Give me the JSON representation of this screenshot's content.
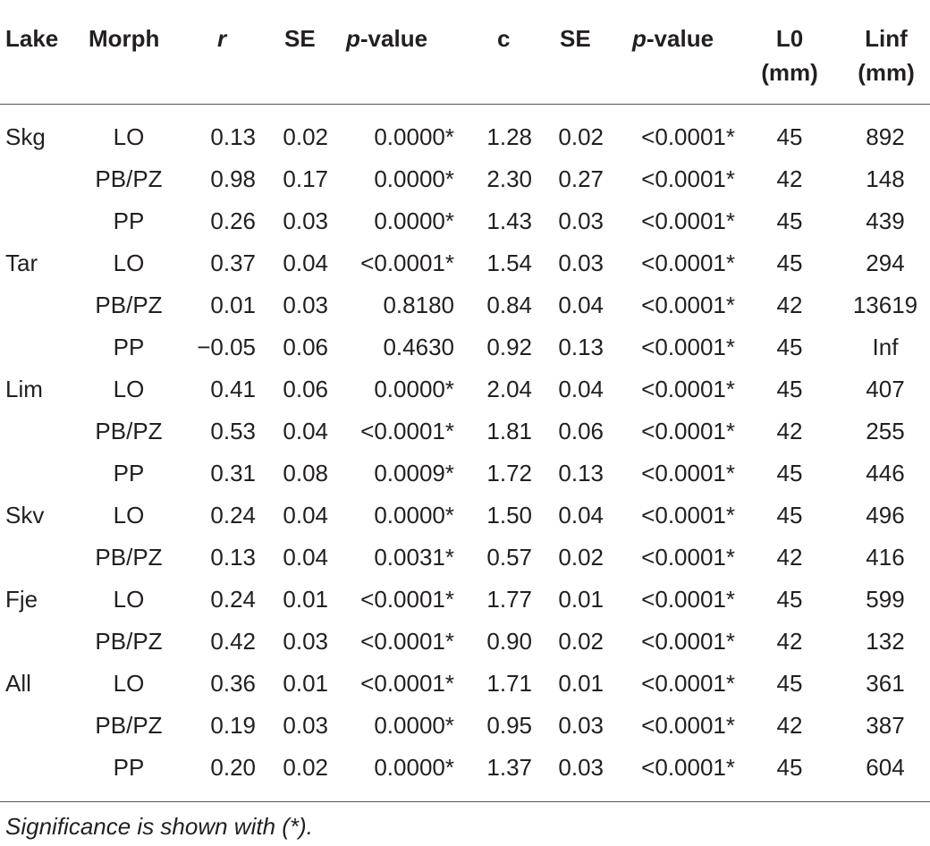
{
  "table": {
    "headers": {
      "lake": "Lake",
      "morph": "Morph",
      "r": "r",
      "se1": "SE",
      "p1_italic": "p",
      "p1_rest": "-value",
      "c": "c",
      "se2": "SE",
      "p2_italic": "p",
      "p2_rest": "-value",
      "l0_line1": "L0",
      "l0_line2": "(mm)",
      "linf_line1": "Linf",
      "linf_line2": "(mm)"
    },
    "rows": [
      {
        "lake": "Skg",
        "morph": "LO",
        "r": "0.13",
        "se1": "0.02",
        "p1": "0.0000*",
        "c": "1.28",
        "se2": "0.02",
        "p2": "<0.0001*",
        "l0": "45",
        "linf": "892"
      },
      {
        "lake": "",
        "morph": "PB/PZ",
        "r": "0.98",
        "se1": "0.17",
        "p1": "0.0000*",
        "c": "2.30",
        "se2": "0.27",
        "p2": "<0.0001*",
        "l0": "42",
        "linf": "148"
      },
      {
        "lake": "",
        "morph": "PP",
        "r": "0.26",
        "se1": "0.03",
        "p1": "0.0000*",
        "c": "1.43",
        "se2": "0.03",
        "p2": "<0.0001*",
        "l0": "45",
        "linf": "439"
      },
      {
        "lake": "Tar",
        "morph": "LO",
        "r": "0.37",
        "se1": "0.04",
        "p1": "<0.0001*",
        "c": "1.54",
        "se2": "0.03",
        "p2": "<0.0001*",
        "l0": "45",
        "linf": "294"
      },
      {
        "lake": "",
        "morph": "PB/PZ",
        "r": "0.01",
        "se1": "0.03",
        "p1": "0.8180",
        "c": "0.84",
        "se2": "0.04",
        "p2": "<0.0001*",
        "l0": "42",
        "linf": "13619"
      },
      {
        "lake": "",
        "morph": "PP",
        "r": "−0.05",
        "se1": "0.06",
        "p1": "0.4630",
        "c": "0.92",
        "se2": "0.13",
        "p2": "<0.0001*",
        "l0": "45",
        "linf": "Inf"
      },
      {
        "lake": "Lim",
        "morph": "LO",
        "r": "0.41",
        "se1": "0.06",
        "p1": "0.0000*",
        "c": "2.04",
        "se2": "0.04",
        "p2": "<0.0001*",
        "l0": "45",
        "linf": "407"
      },
      {
        "lake": "",
        "morph": "PB/PZ",
        "r": "0.53",
        "se1": "0.04",
        "p1": "<0.0001*",
        "c": "1.81",
        "se2": "0.06",
        "p2": "<0.0001*",
        "l0": "42",
        "linf": "255"
      },
      {
        "lake": "",
        "morph": "PP",
        "r": "0.31",
        "se1": "0.08",
        "p1": "0.0009*",
        "c": "1.72",
        "se2": "0.13",
        "p2": "<0.0001*",
        "l0": "45",
        "linf": "446"
      },
      {
        "lake": "Skv",
        "morph": "LO",
        "r": "0.24",
        "se1": "0.04",
        "p1": "0.0000*",
        "c": "1.50",
        "se2": "0.04",
        "p2": "<0.0001*",
        "l0": "45",
        "linf": "496"
      },
      {
        "lake": "",
        "morph": "PB/PZ",
        "r": "0.13",
        "se1": "0.04",
        "p1": "0.0031*",
        "c": "0.57",
        "se2": "0.02",
        "p2": "<0.0001*",
        "l0": "42",
        "linf": "416"
      },
      {
        "lake": "Fje",
        "morph": "LO",
        "r": "0.24",
        "se1": "0.01",
        "p1": "<0.0001*",
        "c": "1.77",
        "se2": "0.01",
        "p2": "<0.0001*",
        "l0": "45",
        "linf": "599"
      },
      {
        "lake": "",
        "morph": "PB/PZ",
        "r": "0.42",
        "se1": "0.03",
        "p1": "<0.0001*",
        "c": "0.90",
        "se2": "0.02",
        "p2": "<0.0001*",
        "l0": "42",
        "linf": "132"
      },
      {
        "lake": "All",
        "morph": "LO",
        "r": "0.36",
        "se1": "0.01",
        "p1": "<0.0001*",
        "c": "1.71",
        "se2": "0.01",
        "p2": "<0.0001*",
        "l0": "45",
        "linf": "361"
      },
      {
        "lake": "",
        "morph": "PB/PZ",
        "r": "0.19",
        "se1": "0.03",
        "p1": "0.0000*",
        "c": "0.95",
        "se2": "0.03",
        "p2": "<0.0001*",
        "l0": "42",
        "linf": "387"
      },
      {
        "lake": "",
        "morph": "PP",
        "r": "0.20",
        "se1": "0.02",
        "p1": "0.0000*",
        "c": "1.37",
        "se2": "0.03",
        "p2": "<0.0001*",
        "l0": "45",
        "linf": "604"
      }
    ],
    "footnote": "Significance is shown with (*)."
  }
}
